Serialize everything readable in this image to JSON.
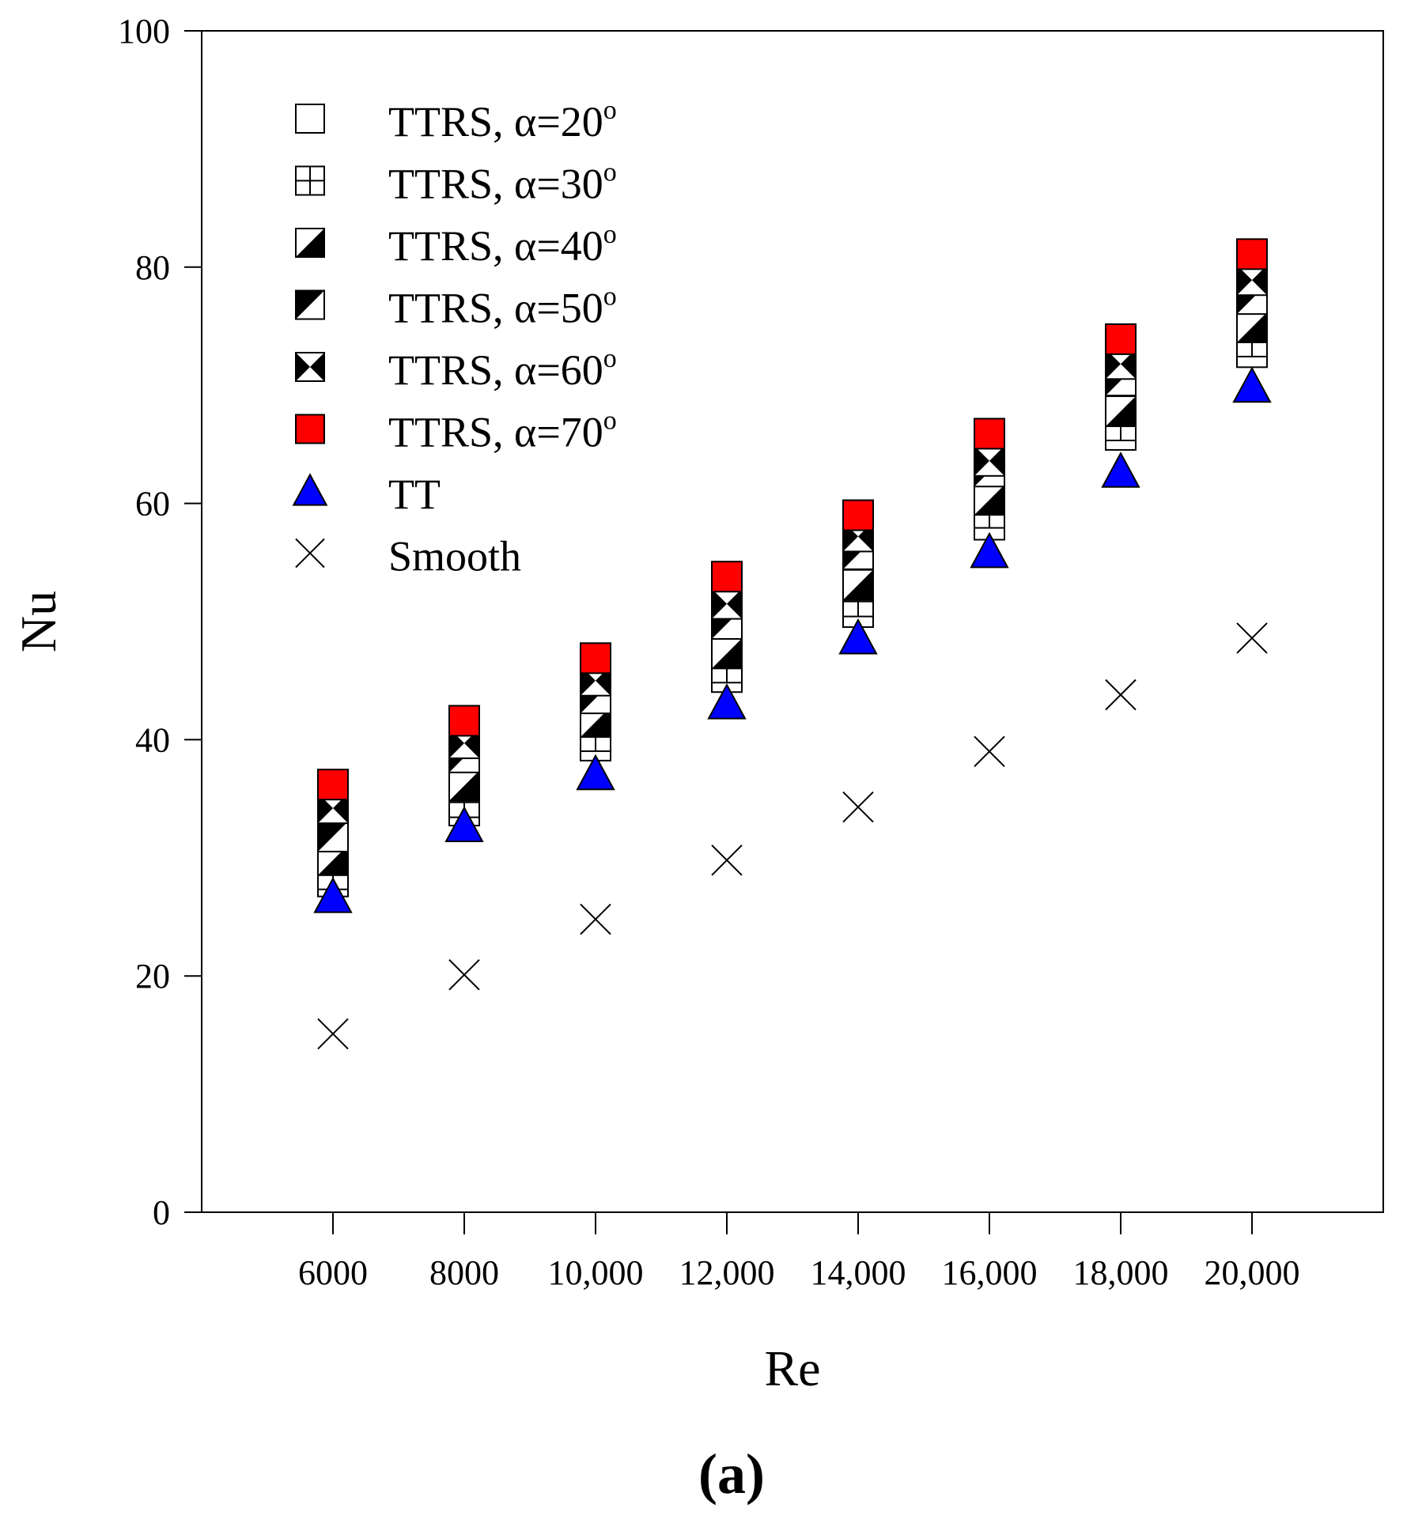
{
  "chart_data": {
    "type": "scatter",
    "title": "",
    "xlabel": "Re",
    "ylabel": "Nu",
    "caption": "(a)",
    "x": [
      6000,
      8000,
      10000,
      12000,
      14000,
      16000,
      18000,
      20000
    ],
    "x_tick_labels": [
      "6000",
      "8000",
      "10,000",
      "12,000",
      "14,000",
      "16,000",
      "18,000",
      "20,000"
    ],
    "xlim": [
      4000,
      22000
    ],
    "ylim": [
      0,
      100
    ],
    "y_ticks": [
      0,
      20,
      40,
      60,
      80,
      100
    ],
    "y_tick_labels": [
      "0",
      "20",
      "40",
      "60",
      "80",
      "100"
    ],
    "legend_position": "top-left",
    "series": [
      {
        "name": "TTRS, α=20°",
        "label_prefix": "TTRS, α=20",
        "label_sup": "o",
        "marker": "square-open",
        "color": "#ffffff",
        "values": [
          28.0,
          34.0,
          39.5,
          45.3,
          50.8,
          58.2,
          65.8,
          72.8
        ]
      },
      {
        "name": "TTRS, α=30°",
        "label_prefix": "TTRS, α=30",
        "label_sup": "o",
        "marker": "square-cross",
        "color": "#ffffff",
        "values": [
          28.6,
          34.7,
          40.3,
          46.1,
          51.7,
          59.2,
          66.6,
          73.7
        ]
      },
      {
        "name": "TTRS, α=40°",
        "label_prefix": "TTRS, α=40",
        "label_sup": "o",
        "marker": "square-half-br",
        "color": "#000000",
        "values": [
          29.8,
          36.1,
          41.5,
          47.3,
          53.1,
          60.3,
          67.8,
          74.9
        ]
      },
      {
        "name": "TTRS, α=50°",
        "label_prefix": "TTRS, α=50",
        "label_sup": "o",
        "marker": "square-half-tl",
        "color": "#000000",
        "values": [
          31.8,
          38.5,
          43.5,
          49.8,
          55.7,
          62.7,
          70.4,
          77.3
        ]
      },
      {
        "name": "TTRS, α=60°",
        "label_prefix": "TTRS, α=60",
        "label_sup": "o",
        "marker": "square-bowtie",
        "color": "#000000",
        "values": [
          34.2,
          39.7,
          45.0,
          51.5,
          57.2,
          63.6,
          71.8,
          78.9
        ]
      },
      {
        "name": "TTRS, α=70°",
        "label_prefix": "TTRS, α=70",
        "label_sup": "o",
        "marker": "square-filled",
        "color": "#ff0000",
        "values": [
          36.2,
          41.6,
          46.9,
          53.8,
          59.0,
          65.9,
          73.9,
          81.1
        ]
      },
      {
        "name": "TT",
        "label_prefix": "TT",
        "label_sup": "",
        "marker": "triangle",
        "color": "#0000ff",
        "values": [
          26.7,
          32.7,
          37.1,
          43.1,
          48.6,
          55.9,
          62.7,
          69.9
        ]
      },
      {
        "name": "Smooth",
        "label_prefix": "Smooth",
        "label_sup": "",
        "marker": "x",
        "color": "#000000",
        "values": [
          15.1,
          20.1,
          24.8,
          29.8,
          34.3,
          39.0,
          43.8,
          48.6
        ]
      }
    ]
  }
}
